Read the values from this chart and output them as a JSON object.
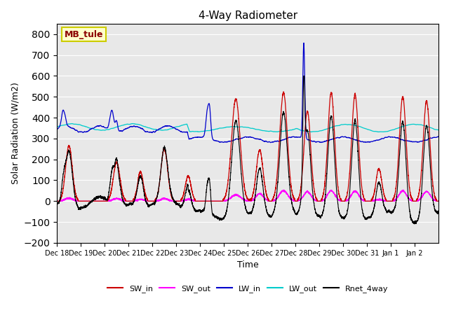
{
  "title": "4-Way Radiometer",
  "xlabel": "Time",
  "ylabel": "Solar Radiation (W/m2)",
  "ylim": [
    -200,
    850
  ],
  "yticks": [
    -200,
    -100,
    0,
    100,
    200,
    300,
    400,
    500,
    600,
    700,
    800
  ],
  "station_label": "MB_tule",
  "colors": {
    "SW_in": "#cc0000",
    "SW_out": "#ff00ff",
    "LW_in": "#0000cc",
    "LW_out": "#00cccc",
    "Rnet_4way": "#000000"
  },
  "background_color": "#e8e8e8",
  "n_days": 16,
  "start_day": 18,
  "sw_in_peaks": [
    265,
    0,
    185,
    140,
    250,
    120,
    0,
    490,
    245,
    520,
    430,
    520,
    510,
    155,
    500,
    480
  ],
  "sw_out_peaks": [
    15,
    0,
    12,
    8,
    12,
    8,
    0,
    30,
    35,
    50,
    45,
    50,
    48,
    8,
    50,
    46
  ],
  "lw_in_base_early": 345,
  "lw_in_base_late": 290,
  "lw_out_base": 350
}
